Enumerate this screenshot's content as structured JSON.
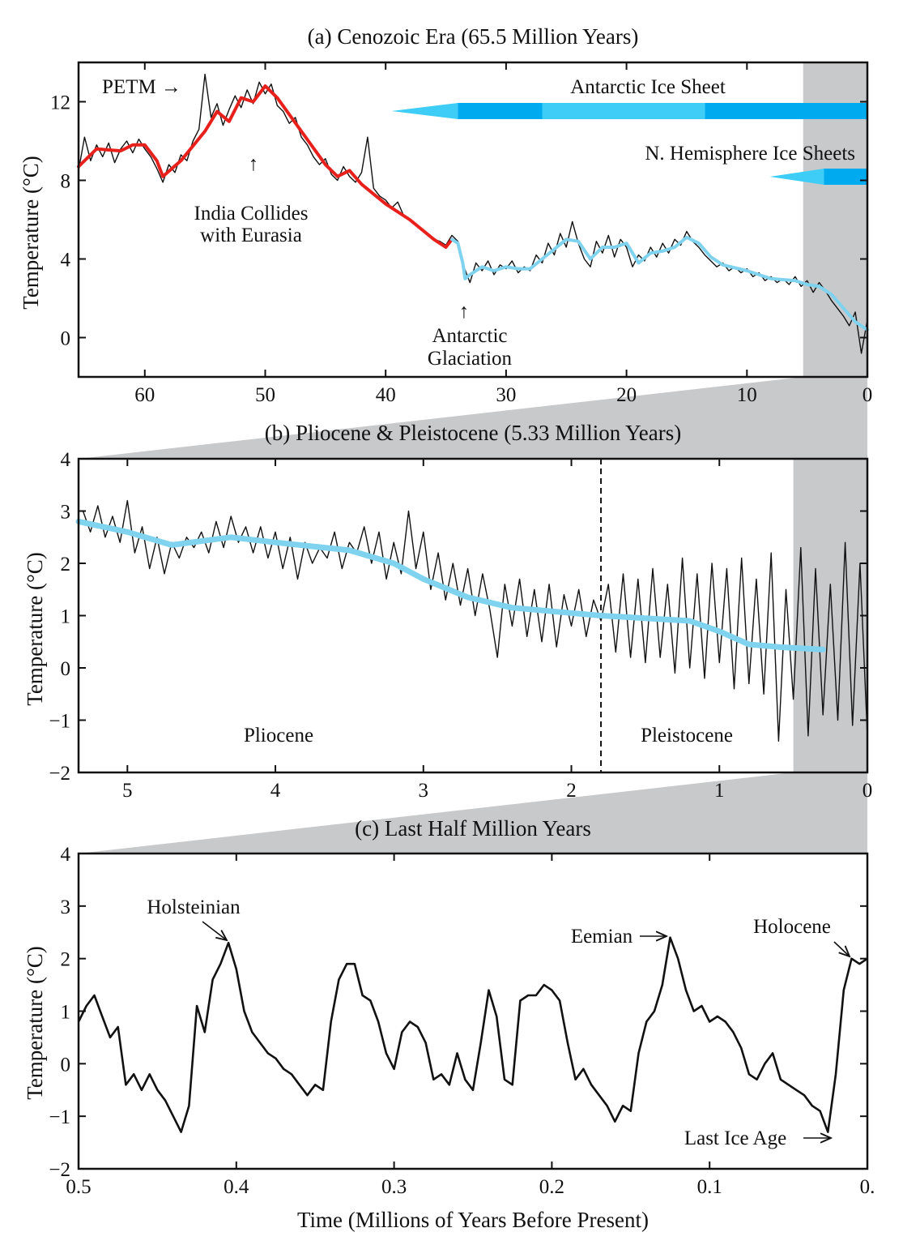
{
  "chart_data": [
    {
      "type": "line",
      "title": "(a) Cenozoic Era (65.5 Million Years)",
      "ylabel": "Temperature (°C)",
      "xlim": [
        65.5,
        0
      ],
      "ylim": [
        -2,
        14
      ],
      "xticks": [
        60,
        50,
        40,
        30,
        20,
        10,
        0
      ],
      "xtick_labels": [
        "60",
        "50",
        "40",
        "30",
        "20",
        "10",
        "0"
      ],
      "yticks": [
        0,
        4,
        8,
        12
      ],
      "ytick_labels": [
        "0",
        "4",
        "8",
        "12"
      ],
      "shaded_range": [
        5.33,
        0
      ],
      "colors": {
        "raw": "#111111",
        "smooth_warm": "#e8201c",
        "smooth_cold": "#7fd3ee",
        "shade": "#c8c9cb",
        "ice_dark": "#00aaee",
        "ice_light": "#3dcdf6"
      },
      "raw": {
        "x_start": 65.5,
        "x_step": -0.5,
        "y": [
          8.5,
          10.2,
          9.0,
          9.8,
          9.2,
          9.9,
          8.9,
          9.6,
          10.0,
          9.4,
          10.1,
          9.6,
          9.2,
          8.6,
          7.9,
          8.8,
          8.4,
          9.3,
          9.0,
          10.0,
          10.6,
          13.4,
          11.2,
          11.9,
          10.8,
          11.6,
          12.3,
          11.7,
          12.6,
          11.9,
          13.0,
          12.4,
          12.9,
          11.8,
          11.5,
          10.9,
          11.2,
          10.2,
          9.8,
          9.2,
          8.8,
          9.1,
          8.3,
          8.0,
          8.7,
          8.2,
          7.9,
          8.4,
          10.2,
          7.6,
          7.2,
          7.0,
          6.6,
          6.9,
          6.2,
          6.0,
          5.8,
          5.5,
          5.3,
          5.0,
          4.9,
          4.7,
          5.2,
          4.9,
          3.6,
          2.8,
          3.8,
          3.4,
          3.9,
          3.2,
          3.7,
          3.5,
          3.9,
          3.3,
          3.6,
          3.4,
          4.2,
          3.8,
          4.8,
          4.2,
          5.3,
          4.6,
          5.9,
          4.8,
          4.0,
          3.6,
          4.9,
          4.3,
          5.2,
          4.1,
          5.0,
          4.6,
          3.6,
          4.2,
          3.9,
          4.6,
          4.1,
          4.8,
          4.3,
          5.0,
          4.7,
          5.4,
          4.9,
          4.6,
          4.2,
          3.9,
          3.6,
          3.8,
          3.4,
          3.6,
          3.3,
          3.5,
          3.1,
          3.3,
          2.9,
          3.1,
          2.8,
          3.0,
          2.7,
          3.1,
          2.6,
          2.9,
          2.3,
          2.8,
          2.4,
          1.9,
          1.5,
          1.1,
          0.6,
          1.3,
          -0.8,
          0.9
        ]
      },
      "smooth_warm": [
        [
          65.5,
          8.7
        ],
        [
          64,
          9.6
        ],
        [
          62,
          9.5
        ],
        [
          61,
          9.8
        ],
        [
          60,
          9.8
        ],
        [
          59,
          9.0
        ],
        [
          58.5,
          8.2
        ],
        [
          57,
          9.0
        ],
        [
          55,
          10.5
        ],
        [
          54,
          11.5
        ],
        [
          53,
          11.0
        ],
        [
          52,
          12.2
        ],
        [
          51,
          12.0
        ],
        [
          50,
          12.8
        ],
        [
          49,
          12.2
        ],
        [
          47,
          10.5
        ],
        [
          45,
          8.8
        ],
        [
          44,
          8.2
        ],
        [
          43,
          8.5
        ],
        [
          42,
          7.8
        ],
        [
          40,
          6.8
        ],
        [
          38,
          6.0
        ],
        [
          36,
          5.0
        ],
        [
          35,
          4.6
        ],
        [
          34.5,
          5.0
        ]
      ],
      "smooth_cold": [
        [
          34.5,
          5.0
        ],
        [
          34,
          4.8
        ],
        [
          33.6,
          3.8
        ],
        [
          33.4,
          3.0
        ],
        [
          33,
          3.2
        ],
        [
          32,
          3.6
        ],
        [
          31,
          3.4
        ],
        [
          30,
          3.6
        ],
        [
          29,
          3.5
        ],
        [
          28,
          3.5
        ],
        [
          27,
          4.0
        ],
        [
          26,
          4.5
        ],
        [
          25,
          5.0
        ],
        [
          24,
          4.9
        ],
        [
          23,
          4.0
        ],
        [
          22,
          4.6
        ],
        [
          21,
          4.6
        ],
        [
          20,
          4.8
        ],
        [
          19,
          3.8
        ],
        [
          18,
          4.3
        ],
        [
          17,
          4.4
        ],
        [
          16,
          4.6
        ],
        [
          15,
          5.1
        ],
        [
          14,
          4.8
        ],
        [
          13,
          4.1
        ],
        [
          12,
          3.7
        ],
        [
          10,
          3.4
        ],
        [
          8,
          3.0
        ],
        [
          6,
          2.9
        ],
        [
          5,
          2.7
        ],
        [
          4,
          2.6
        ],
        [
          3,
          2.2
        ],
        [
          2,
          1.5
        ],
        [
          1,
          0.8
        ],
        [
          0,
          0.4
        ]
      ],
      "ice_sheets": [
        {
          "name": "Antarctic Ice Sheet",
          "onset_from": 39.5,
          "segments": [
            {
              "from": 34,
              "to": 27,
              "shade": "dark"
            },
            {
              "from": 27,
              "to": 13.5,
              "shade": "light"
            },
            {
              "from": 13.5,
              "to": 0,
              "shade": "dark"
            }
          ]
        },
        {
          "name": "N. Hemisphere Ice Sheets",
          "onset_from": 8.1,
          "segments": [
            {
              "from": 3.6,
              "to": 0,
              "shade": "dark"
            }
          ]
        }
      ],
      "annotations": {
        "petm": "PETM →",
        "india_arrow": "↑",
        "india_1": "India Collides",
        "india_2": "with Eurasia",
        "glac_arrow": "↑",
        "glac_1": "Antarctic",
        "glac_2": "Glaciation"
      }
    },
    {
      "type": "line",
      "title": "(b) Pliocene & Pleistocene (5.33 Million Years)",
      "ylabel": "Temperature (°C)",
      "xlim": [
        5.33,
        0
      ],
      "ylim": [
        -2,
        4
      ],
      "xticks": [
        5,
        4,
        3,
        2,
        1,
        0
      ],
      "xtick_labels": [
        "5",
        "4",
        "3",
        "2",
        "1",
        "0"
      ],
      "yticks": [
        -2,
        -1,
        0,
        1,
        2,
        3,
        4
      ],
      "ytick_labels": [
        "−2",
        "−1",
        "0",
        "1",
        "2",
        "3",
        "4"
      ],
      "shaded_range": [
        0.5,
        0
      ],
      "boundary": 1.8,
      "raw": {
        "x_start": 5.3,
        "x_step": -0.05,
        "y": [
          3.0,
          2.6,
          3.1,
          2.5,
          2.9,
          2.4,
          3.2,
          2.2,
          2.7,
          1.9,
          2.5,
          1.8,
          2.4,
          2.1,
          2.5,
          2.3,
          2.6,
          2.2,
          2.8,
          2.3,
          2.9,
          2.4,
          2.7,
          2.2,
          2.7,
          2.1,
          2.6,
          1.9,
          2.5,
          1.7,
          2.4,
          2.0,
          2.3,
          2.1,
          2.6,
          1.9,
          2.4,
          2.2,
          2.7,
          2.0,
          2.6,
          1.7,
          2.4,
          1.8,
          3.0,
          1.9,
          2.6,
          1.5,
          2.2,
          1.3,
          2.0,
          1.2,
          1.9,
          1.0,
          1.8,
          1.1,
          0.2,
          1.6,
          0.8,
          1.7,
          0.6,
          1.5,
          0.5,
          1.6,
          0.4,
          1.4,
          0.8,
          1.5,
          0.6,
          1.3,
          0.9,
          1.6,
          0.3,
          1.8,
          0.2,
          1.7,
          0.1,
          1.9,
          0.2,
          1.6,
          -0.1,
          2.1,
          0.0,
          1.8,
          -0.2,
          2.0,
          0.1,
          1.9,
          -0.4,
          2.1,
          -0.3,
          1.7,
          -0.5,
          2.2,
          -1.4,
          1.5,
          -0.6,
          2.3,
          -1.3,
          1.9,
          -0.9,
          1.6,
          -1.0,
          2.4,
          -1.1,
          2.0,
          -1.3
        ]
      },
      "smooth": [
        [
          5.33,
          2.8
        ],
        [
          5,
          2.6
        ],
        [
          4.7,
          2.35
        ],
        [
          4.3,
          2.5
        ],
        [
          4,
          2.4
        ],
        [
          3.5,
          2.25
        ],
        [
          3.2,
          2.0
        ],
        [
          3,
          1.7
        ],
        [
          2.7,
          1.35
        ],
        [
          2.4,
          1.15
        ],
        [
          2,
          1.05
        ],
        [
          1.8,
          1.0
        ],
        [
          1.5,
          0.95
        ],
        [
          1.2,
          0.9
        ],
        [
          1,
          0.7
        ],
        [
          0.8,
          0.45
        ],
        [
          0.6,
          0.4
        ],
        [
          0.3,
          0.35
        ]
      ],
      "annotations": {
        "pliocene": "Pliocene",
        "pleistocene": "Pleistocene"
      }
    },
    {
      "type": "line",
      "title": "(c) Last Half Million Years",
      "xlabel": "Time (Millions of Years Before Present)",
      "ylabel": "Temperature (°C)",
      "xlim": [
        0.5,
        0
      ],
      "ylim": [
        -2,
        4
      ],
      "xticks": [
        0.5,
        0.4,
        0.3,
        0.2,
        0.1,
        0
      ],
      "xtick_labels": [
        "0.5",
        "0.4",
        "0.3",
        "0.2",
        "0.1",
        "0."
      ],
      "yticks": [
        -2,
        -1,
        0,
        1,
        2,
        3,
        4
      ],
      "ytick_labels": [
        "−2",
        "−1",
        "0",
        "1",
        "2",
        "3",
        "4"
      ],
      "raw": {
        "x_start": 0.5,
        "x_step": -0.005,
        "y": [
          0.8,
          1.1,
          1.3,
          0.9,
          0.5,
          0.7,
          -0.4,
          -0.2,
          -0.5,
          -0.2,
          -0.5,
          -0.7,
          -1.0,
          -1.3,
          -0.8,
          1.1,
          0.6,
          1.6,
          1.9,
          2.3,
          1.8,
          1.0,
          0.6,
          0.4,
          0.2,
          0.1,
          -0.1,
          -0.2,
          -0.4,
          -0.6,
          -0.4,
          -0.5,
          0.8,
          1.6,
          1.9,
          1.9,
          1.3,
          1.2,
          0.8,
          0.2,
          -0.1,
          0.6,
          0.8,
          0.7,
          0.4,
          -0.3,
          -0.2,
          -0.4,
          0.2,
          -0.3,
          -0.5,
          0.4,
          1.4,
          0.9,
          -0.3,
          -0.4,
          1.2,
          1.3,
          1.3,
          1.5,
          1.4,
          1.2,
          0.4,
          -0.3,
          -0.1,
          -0.4,
          -0.6,
          -0.8,
          -1.1,
          -0.8,
          -0.9,
          0.2,
          0.8,
          1.0,
          1.5,
          2.4,
          2.0,
          1.4,
          1.0,
          1.1,
          0.8,
          0.9,
          0.8,
          0.6,
          0.3,
          -0.2,
          -0.3,
          0.0,
          0.2,
          -0.3,
          -0.4,
          -0.5,
          -0.6,
          -0.8,
          -0.9,
          -1.3,
          -0.2,
          1.4,
          2.0,
          1.9,
          2.0
        ]
      },
      "annotations": {
        "holsteinian": "Holsteinian",
        "eemian": "Eemian",
        "holocene": "Holocene",
        "last_ice_age": "Last Ice Age"
      }
    }
  ]
}
